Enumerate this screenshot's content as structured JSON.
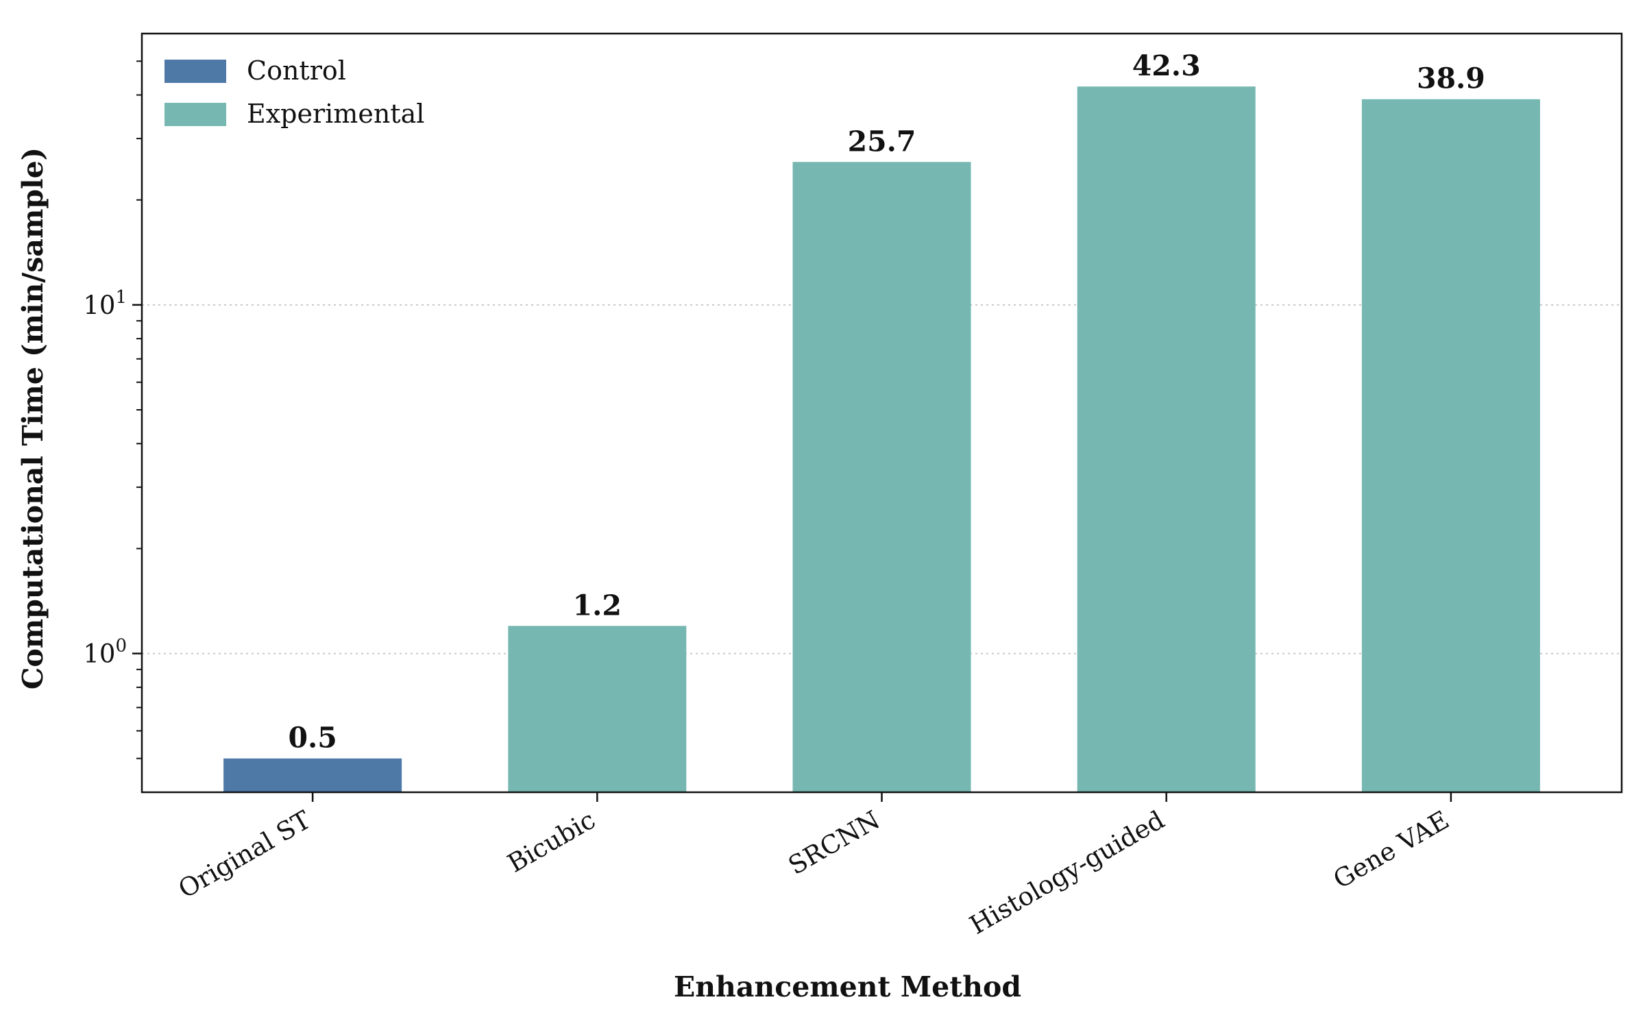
{
  "chart_data": {
    "type": "bar",
    "categories": [
      "Original ST",
      "Bicubic",
      "SRCNN",
      "Histology-guided",
      "Gene VAE"
    ],
    "values": [
      0.5,
      1.2,
      25.7,
      42.3,
      38.9
    ],
    "value_labels": [
      "0.5",
      "1.2",
      "25.7",
      "42.3",
      "38.9"
    ],
    "groups": [
      "Control",
      "Experimental",
      "Experimental",
      "Experimental",
      "Experimental"
    ],
    "xlabel": "Enhancement Method",
    "ylabel": "Computational Time (min/sample)",
    "yscale": "log",
    "ylim": [
      0.4,
      60
    ],
    "yticks": [
      {
        "value": 1,
        "base": "10",
        "exp": "0"
      },
      {
        "value": 10,
        "base": "10",
        "exp": "1"
      }
    ],
    "grid": "horizontal-dotted",
    "legend_position": "top-left",
    "legend": [
      {
        "label": "Control",
        "color": "#4e79a7"
      },
      {
        "label": "Experimental",
        "color": "#76b7b2"
      }
    ],
    "colors": {
      "Control": "#4e79a7",
      "Experimental": "#76b7b2"
    }
  }
}
